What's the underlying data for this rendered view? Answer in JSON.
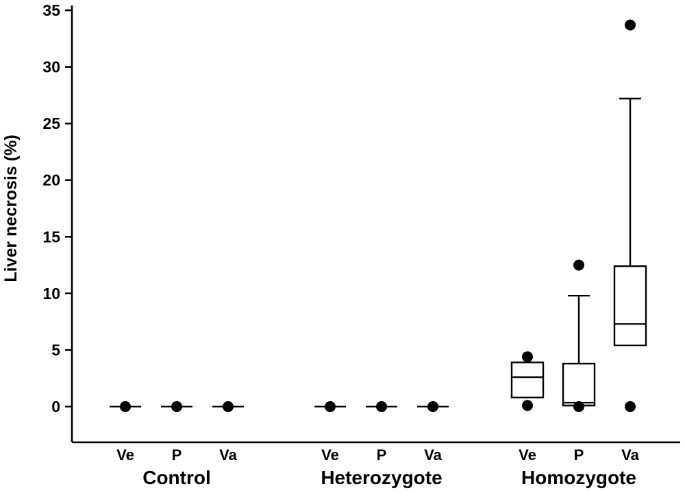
{
  "chart_data": {
    "type": "boxplot",
    "title": "",
    "xlabel": "",
    "ylabel": "Liver necrosis (%)",
    "ylim": [
      0,
      35
    ],
    "yticks": [
      0,
      5,
      10,
      15,
      20,
      25,
      30,
      35
    ],
    "grid": false,
    "legend": "none",
    "colors": {
      "stroke": "#000000",
      "box_fill": "#ffffff",
      "point_fill": "#000000",
      "background": "#ffffff"
    },
    "groups": [
      {
        "label": "Control",
        "boxes": [
          {
            "category": "Ve",
            "whisker_low": 0,
            "q1": 0,
            "median": 0,
            "q3": 0,
            "whisker_high": 0,
            "points": [
              0
            ]
          },
          {
            "category": "P",
            "whisker_low": 0,
            "q1": 0,
            "median": 0,
            "q3": 0,
            "whisker_high": 0,
            "points": [
              0
            ]
          },
          {
            "category": "Va",
            "whisker_low": 0,
            "q1": 0,
            "median": 0,
            "q3": 0,
            "whisker_high": 0,
            "points": [
              0
            ]
          }
        ]
      },
      {
        "label": "Heterozygote",
        "boxes": [
          {
            "category": "Ve",
            "whisker_low": 0,
            "q1": 0,
            "median": 0,
            "q3": 0,
            "whisker_high": 0,
            "points": [
              0
            ]
          },
          {
            "category": "P",
            "whisker_low": 0,
            "q1": 0,
            "median": 0,
            "q3": 0,
            "whisker_high": 0,
            "points": [
              0
            ]
          },
          {
            "category": "Va",
            "whisker_low": 0,
            "q1": 0,
            "median": 0,
            "q3": 0,
            "whisker_high": 0,
            "points": [
              0
            ]
          }
        ]
      },
      {
        "label": "Homozygote",
        "boxes": [
          {
            "category": "Ve",
            "whisker_low": 0.8,
            "q1": 0.8,
            "median": 2.6,
            "q3": 3.9,
            "whisker_high": 3.9,
            "points": [
              4.4,
              0.1
            ]
          },
          {
            "category": "P",
            "whisker_low": 0.1,
            "q1": 0.1,
            "median": 0.35,
            "q3": 3.8,
            "whisker_high": 9.8,
            "points": [
              12.5,
              0
            ]
          },
          {
            "category": "Va",
            "whisker_low": 5.4,
            "q1": 5.4,
            "median": 7.3,
            "q3": 12.4,
            "whisker_high": 27.2,
            "points": [
              33.7,
              0
            ]
          }
        ]
      }
    ]
  }
}
